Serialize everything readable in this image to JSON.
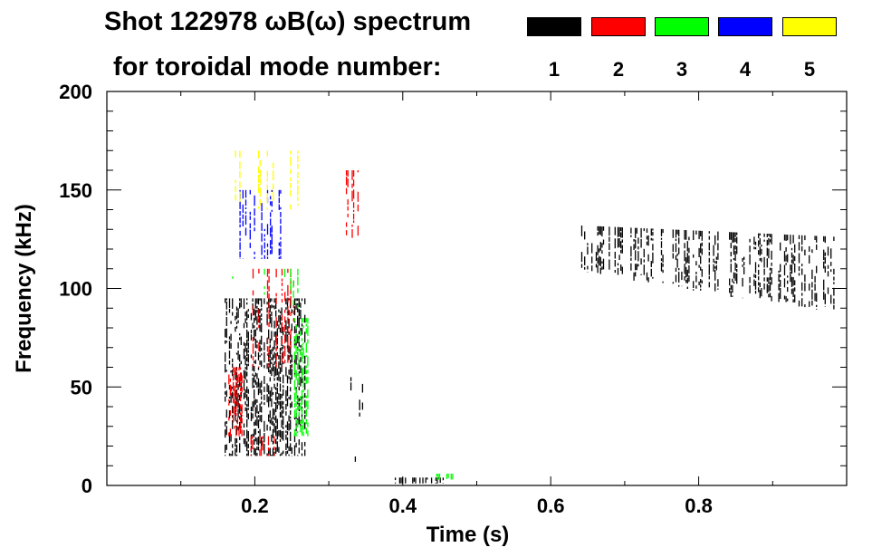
{
  "title": "Shot 122978 ωB(ω) spectrum",
  "subtitle": "for toroidal mode number:",
  "legend": [
    {
      "label": "1",
      "color": "#000000"
    },
    {
      "label": "2",
      "color": "#ff0000"
    },
    {
      "label": "3",
      "color": "#00ff00"
    },
    {
      "label": "4",
      "color": "#0000ff"
    },
    {
      "label": "5",
      "color": "#ffff00"
    }
  ],
  "chart_data": {
    "type": "scatter",
    "title": "Shot 122978 ωB(ω) spectrum",
    "xlabel": "Time (s)",
    "ylabel": "Frequency (kHz)",
    "xlim": [
      0.0,
      1.0
    ],
    "ylim": [
      0,
      200
    ],
    "xticks": [
      0.2,
      0.4,
      0.6,
      0.8
    ],
    "xtick_labels": [
      "0.2",
      "0.4",
      "0.6",
      "0.8"
    ],
    "yticks": [
      0,
      50,
      100,
      150,
      200
    ],
    "ytick_labels": [
      "0",
      "50",
      "100",
      "150",
      "200"
    ],
    "series": [
      {
        "name": "1",
        "color": "#000000",
        "regions": [
          {
            "t": [
              0.16,
              0.27
            ],
            "f": [
              15,
              95
            ],
            "density": 0.85
          },
          {
            "t": [
              0.33,
              0.345
            ],
            "f": [
              12,
              18
            ],
            "density": 0.7
          },
          {
            "t": [
              0.33,
              0.35
            ],
            "f": [
              35,
              55
            ],
            "density": 0.25
          },
          {
            "t": [
              0.39,
              0.46
            ],
            "f": [
              1,
              4
            ],
            "density": 0.6
          },
          {
            "t": [
              0.64,
              1.0
            ],
            "f": [
              85,
              130
            ],
            "density": 0.5,
            "band": "decreasing"
          }
        ]
      },
      {
        "name": "2",
        "color": "#ff0000",
        "regions": [
          {
            "t": [
              0.165,
              0.185
            ],
            "f": [
              25,
              60
            ],
            "density": 0.5
          },
          {
            "t": [
              0.18,
              0.26
            ],
            "f": [
              60,
              110
            ],
            "density": 0.2
          },
          {
            "t": [
              0.195,
              0.23
            ],
            "f": [
              15,
              25
            ],
            "density": 0.5
          },
          {
            "t": [
              0.32,
              0.34
            ],
            "f": [
              125,
              160
            ],
            "density": 0.25
          }
        ]
      },
      {
        "name": "3",
        "color": "#00ff00",
        "regions": [
          {
            "t": [
              0.252,
              0.272
            ],
            "f": [
              25,
              85
            ],
            "density": 0.8
          },
          {
            "t": [
              0.17,
              0.26
            ],
            "f": [
              90,
              110
            ],
            "density": 0.2
          },
          {
            "t": [
              0.44,
              0.47
            ],
            "f": [
              3,
              6
            ],
            "density": 0.5
          }
        ]
      },
      {
        "name": "4",
        "color": "#0000ff",
        "regions": [
          {
            "t": [
              0.18,
              0.26
            ],
            "f": [
              115,
              150
            ],
            "density": 0.3
          }
        ]
      },
      {
        "name": "5",
        "color": "#ffff00",
        "regions": [
          {
            "t": [
              0.17,
              0.27
            ],
            "f": [
              140,
              170
            ],
            "density": 0.15
          }
        ]
      }
    ]
  }
}
